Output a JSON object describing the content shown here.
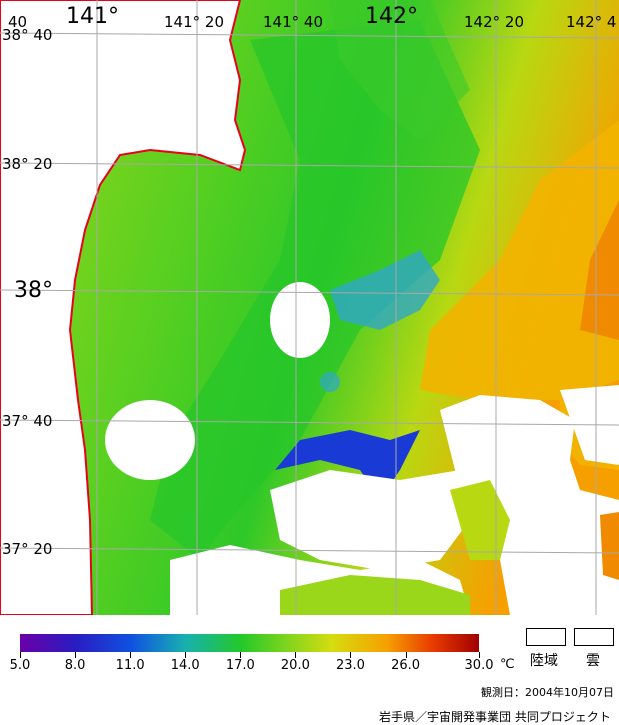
{
  "map": {
    "lon_labels": [
      {
        "text": "40",
        "size": "sm"
      },
      {
        "text": "141°",
        "size": "big"
      },
      {
        "text": "141° 20",
        "size": "sm"
      },
      {
        "text": "141° 40",
        "size": "sm"
      },
      {
        "text": "142°",
        "size": "big"
      },
      {
        "text": "142° 20",
        "size": "sm"
      },
      {
        "text": "142° 4",
        "size": "sm"
      }
    ],
    "lat_labels": [
      {
        "text": "38° 40",
        "size": "sm"
      },
      {
        "text": "38° 20",
        "size": "sm"
      },
      {
        "text": "38°",
        "size": "big"
      },
      {
        "text": "37° 40",
        "size": "sm"
      },
      {
        "text": "37° 20",
        "size": "sm"
      }
    ],
    "colors": {
      "land_cloud": "#ffffff",
      "coastline": "#e8001c",
      "grid": "#a8a8a8",
      "sea_cool": "#22c82a",
      "sea_mid": "#9ad61a",
      "sea_warm": "#f6a000",
      "sea_cold": "#1a2ad0"
    }
  },
  "colorbar": {
    "ticks": [
      "5.0",
      "8.0",
      "11.0",
      "14.0",
      "17.0",
      "20.0",
      "23.0",
      "26.0",
      "30.0"
    ],
    "unit": "℃",
    "min": 5.0,
    "max": 30.0
  },
  "legend": {
    "land_label": "陸域",
    "cloud_label": "雲"
  },
  "footer": {
    "observation_date": "観測日：2004年10月07日",
    "credit": "岩手県／宇宙開発事業団 共同プロジェクト"
  }
}
